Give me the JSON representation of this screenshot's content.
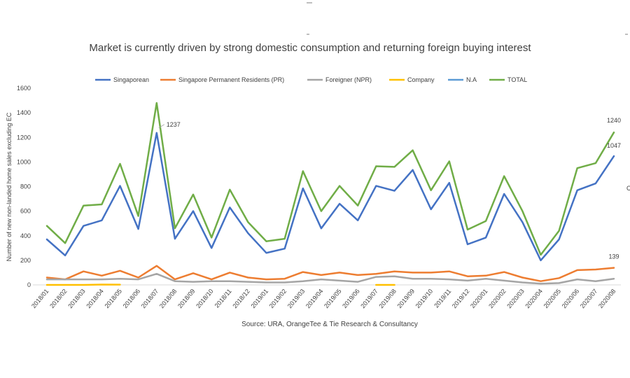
{
  "chart_data": {
    "type": "line",
    "title": "Market is currently driven by strong domestic consumption and returning foreign buying interest",
    "ylabel": "Number of new non-landed home sales excluding EC",
    "xlabel": "",
    "source": "Source: URA, OrangeTee & Tie Research & Consultancy",
    "ylim": [
      0,
      1600
    ],
    "yticks": [
      0,
      200,
      400,
      600,
      800,
      1000,
      1200,
      1400,
      1600
    ],
    "legend_position": "top",
    "categories": [
      "2018/01",
      "2018/02",
      "2018/03",
      "2018/04",
      "2018/05",
      "2018/06",
      "2018/07",
      "2018/08",
      "2018/09",
      "2018/10",
      "2018/11",
      "2018/12",
      "2019/01",
      "2019/02",
      "2019/03",
      "2019/04",
      "2019/05",
      "2019/06",
      "2019/07",
      "2019/08",
      "2019/09",
      "2019/10",
      "2019/11",
      "2019/12",
      "2020/01",
      "2020/02",
      "2020/03",
      "2020/04",
      "2020/05",
      "2020/06",
      "2020/07",
      "2020/08"
    ],
    "series": [
      {
        "name": "Singaporean",
        "color": "#4472C4",
        "values": [
          370,
          240,
          480,
          525,
          805,
          455,
          1237,
          375,
          600,
          300,
          630,
          420,
          260,
          295,
          785,
          460,
          660,
          525,
          805,
          765,
          935,
          615,
          830,
          330,
          385,
          740,
          510,
          200,
          370,
          770,
          825,
          1047
        ]
      },
      {
        "name": "Singapore Permanent Residents (PR)",
        "color": "#ED7D31",
        "values": [
          60,
          45,
          110,
          75,
          115,
          60,
          155,
          45,
          95,
          45,
          100,
          60,
          45,
          50,
          105,
          80,
          100,
          80,
          90,
          110,
          100,
          100,
          110,
          70,
          75,
          105,
          60,
          30,
          55,
          120,
          125,
          139
        ]
      },
      {
        "name": "Foreigner (NPR)",
        "color": "#A5A5A5",
        "values": [
          45,
          45,
          45,
          45,
          50,
          45,
          90,
          30,
          25,
          30,
          30,
          25,
          20,
          20,
          30,
          45,
          35,
          25,
          65,
          70,
          50,
          50,
          45,
          35,
          50,
          35,
          20,
          10,
          15,
          45,
          30,
          50
        ]
      },
      {
        "name": "Company",
        "color": "#FFC000",
        "values": [
          0,
          0,
          0,
          3,
          2,
          null,
          null,
          null,
          null,
          null,
          null,
          null,
          null,
          null,
          null,
          null,
          null,
          null,
          0,
          0,
          null,
          null,
          null,
          null,
          null,
          null,
          null,
          null,
          null,
          null,
          null,
          null
        ]
      },
      {
        "name": "N.A",
        "color": "#5B9BD5",
        "values": [
          null,
          null,
          null,
          null,
          null,
          null,
          null,
          null,
          null,
          null,
          null,
          null,
          null,
          null,
          null,
          null,
          null,
          null,
          null,
          null,
          null,
          null,
          null,
          null,
          null,
          null,
          null,
          null,
          null,
          null,
          null,
          null
        ]
      },
      {
        "name": "TOTAL",
        "color": "#70AD47",
        "values": [
          480,
          340,
          645,
          655,
          985,
          560,
          1480,
          460,
          735,
          385,
          775,
          510,
          355,
          375,
          925,
          600,
          805,
          645,
          965,
          960,
          1095,
          770,
          1005,
          450,
          520,
          885,
          600,
          245,
          440,
          950,
          990,
          1240
        ]
      }
    ],
    "annotations": [
      {
        "series": "Singaporean",
        "index": 6,
        "text": "1237"
      },
      {
        "series": "TOTAL",
        "index": 31,
        "text": "1240"
      },
      {
        "series": "Singaporean",
        "index": 31,
        "text": "1047"
      },
      {
        "series": "Singapore Permanent Residents (PR)",
        "index": 31,
        "text": "139"
      }
    ]
  }
}
